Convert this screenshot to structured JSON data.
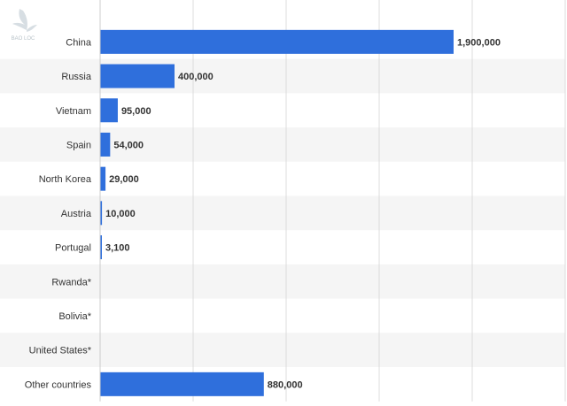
{
  "logo": {
    "icon": "bird-logo-icon",
    "text": "BAO LOC"
  },
  "chart_data": {
    "type": "bar",
    "orientation": "horizontal",
    "title": "",
    "xlabel": "",
    "ylabel": "",
    "xlim": [
      0,
      2500000
    ],
    "grid": true,
    "bar_color": "#2f6fdc",
    "band_color": "#f5f5f5",
    "categories": [
      "China",
      "Russia",
      "Vietnam",
      "Spain",
      "North Korea",
      "Austria",
      "Portugal",
      "Rwanda*",
      "Bolivia*",
      "United States*",
      "Other countries"
    ],
    "values": [
      1900000,
      400000,
      95000,
      54000,
      29000,
      10000,
      3100,
      0,
      0,
      0,
      880000
    ],
    "value_labels": [
      "1,900,000",
      "400,000",
      "95,000",
      "54,000",
      "29,000",
      "10,000",
      "3,100",
      "",
      "",
      "",
      "880,000"
    ]
  }
}
